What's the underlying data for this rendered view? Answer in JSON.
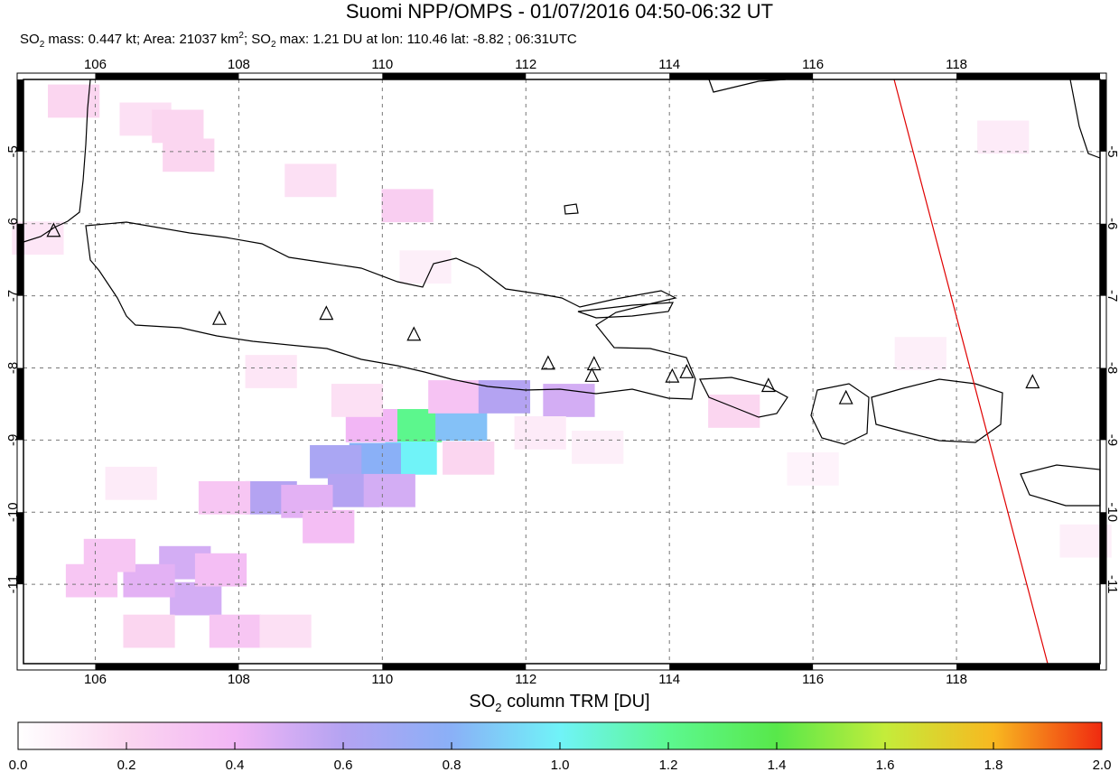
{
  "title": "Suomi NPP/OMPS - 01/07/2016 04:50-06:32 UT",
  "subtitle": {
    "mass_label": "SO",
    "mass_sub": "2",
    "mass_text": " mass: 0.447 kt; Area: 21037 km",
    "area_sup": "2",
    "max_label": "; SO",
    "max_sub": "2",
    "max_text": " max: 1.21 DU at lon: 110.46 lat: -8.82 ; 06:31UTC"
  },
  "map": {
    "lon_range": [
      105,
      120
    ],
    "lat_range": [
      -12.1,
      -4
    ],
    "lon_ticks": [
      106,
      108,
      110,
      112,
      114,
      116,
      118
    ],
    "lat_ticks": [
      -5,
      -6,
      -7,
      -8,
      -9,
      -10,
      -11
    ],
    "grid": "dashed",
    "coast_color": "#000000",
    "swath_edge_color": "#e00000",
    "volcano_icon": "triangle-outline",
    "so2_cells": [
      {
        "lon": 110.47,
        "lat": -8.8,
        "du": 1.21
      },
      {
        "lon": 111.1,
        "lat": -8.78,
        "du": 0.85
      },
      {
        "lon": 110.4,
        "lat": -9.25,
        "du": 1.0
      },
      {
        "lon": 109.9,
        "lat": -9.27,
        "du": 0.8
      },
      {
        "lon": 109.35,
        "lat": -9.3,
        "du": 0.65
      },
      {
        "lon": 109.6,
        "lat": -9.7,
        "du": 0.6
      },
      {
        "lon": 110.1,
        "lat": -9.7,
        "du": 0.5
      },
      {
        "lon": 109.85,
        "lat": -8.8,
        "du": 0.4
      },
      {
        "lon": 111.0,
        "lat": -8.4,
        "du": 0.32
      },
      {
        "lon": 111.7,
        "lat": -8.4,
        "du": 0.6
      },
      {
        "lon": 112.6,
        "lat": -8.45,
        "du": 0.5
      },
      {
        "lon": 111.2,
        "lat": -9.25,
        "du": 0.2
      },
      {
        "lon": 108.45,
        "lat": -9.8,
        "du": 0.6
      },
      {
        "lon": 108.95,
        "lat": -9.85,
        "du": 0.45
      },
      {
        "lon": 109.25,
        "lat": -10.2,
        "du": 0.35
      },
      {
        "lon": 107.8,
        "lat": -9.8,
        "du": 0.3
      },
      {
        "lon": 107.25,
        "lat": -10.7,
        "du": 0.5
      },
      {
        "lon": 107.4,
        "lat": -11.2,
        "du": 0.5
      },
      {
        "lon": 106.75,
        "lat": -10.95,
        "du": 0.45
      },
      {
        "lon": 106.2,
        "lat": -10.6,
        "du": 0.3
      },
      {
        "lon": 105.95,
        "lat": -10.95,
        "du": 0.3
      },
      {
        "lon": 107.75,
        "lat": -10.8,
        "du": 0.35
      },
      {
        "lon": 107.95,
        "lat": -11.65,
        "du": 0.3
      },
      {
        "lon": 106.75,
        "lat": -11.65,
        "du": 0.2
      },
      {
        "lon": 108.65,
        "lat": -11.65,
        "du": 0.15
      },
      {
        "lon": 110.35,
        "lat": -5.75,
        "du": 0.25
      },
      {
        "lon": 107.3,
        "lat": -5.05,
        "du": 0.2
      },
      {
        "lon": 106.7,
        "lat": -4.55,
        "du": 0.15
      },
      {
        "lon": 105.7,
        "lat": -4.3,
        "du": 0.2
      },
      {
        "lon": 107.15,
        "lat": -4.65,
        "du": 0.2
      },
      {
        "lon": 109.0,
        "lat": -5.4,
        "du": 0.15
      },
      {
        "lon": 108.45,
        "lat": -8.05,
        "du": 0.12
      },
      {
        "lon": 109.65,
        "lat": -8.45,
        "du": 0.15
      },
      {
        "lon": 114.9,
        "lat": -8.6,
        "du": 0.2
      },
      {
        "lon": 118.65,
        "lat": -4.8,
        "du": 0.1
      },
      {
        "lon": 105.2,
        "lat": -6.2,
        "du": 0.12
      },
      {
        "lon": 112.2,
        "lat": -8.9,
        "du": 0.1
      },
      {
        "lon": 113.0,
        "lat": -9.1,
        "du": 0.08
      },
      {
        "lon": 116.0,
        "lat": -9.4,
        "du": 0.06
      },
      {
        "lon": 117.5,
        "lat": -7.8,
        "du": 0.08
      },
      {
        "lon": 119.8,
        "lat": -10.4,
        "du": 0.08
      },
      {
        "lon": 110.6,
        "lat": -6.6,
        "du": 0.08
      },
      {
        "lon": 106.5,
        "lat": -9.6,
        "du": 0.1
      }
    ],
    "volcanoes": [
      {
        "lon": 105.42,
        "lat": -6.1
      },
      {
        "lon": 107.73,
        "lat": -7.32
      },
      {
        "lon": 109.22,
        "lat": -7.25
      },
      {
        "lon": 110.44,
        "lat": -7.54
      },
      {
        "lon": 112.31,
        "lat": -7.94
      },
      {
        "lon": 112.95,
        "lat": -7.95
      },
      {
        "lon": 112.92,
        "lat": -8.11
      },
      {
        "lon": 114.04,
        "lat": -8.12
      },
      {
        "lon": 114.24,
        "lat": -8.06
      },
      {
        "lon": 115.38,
        "lat": -8.25
      },
      {
        "lon": 116.46,
        "lat": -8.42
      },
      {
        "lon": 119.06,
        "lat": -8.2
      }
    ]
  },
  "colorbar": {
    "title_main": "SO",
    "title_sub": "2",
    "title_rest": " column TRM [DU]",
    "range": [
      0,
      2
    ],
    "tick_labels": [
      "0.0",
      "0.2",
      "0.4",
      "0.6",
      "0.8",
      "1.0",
      "1.2",
      "1.4",
      "1.6",
      "1.8",
      "2.0"
    ],
    "stops": [
      {
        "v": 0.0,
        "color": "#ffffff"
      },
      {
        "v": 0.2,
        "color": "#fbd6f0"
      },
      {
        "v": 0.4,
        "color": "#f2b6f5"
      },
      {
        "v": 0.6,
        "color": "#b4a3f2"
      },
      {
        "v": 0.8,
        "color": "#8ab0f7"
      },
      {
        "v": 1.0,
        "color": "#70f3f8"
      },
      {
        "v": 1.2,
        "color": "#5cf890"
      },
      {
        "v": 1.4,
        "color": "#58e84a"
      },
      {
        "v": 1.6,
        "color": "#c4ec3a"
      },
      {
        "v": 1.8,
        "color": "#f8b820"
      },
      {
        "v": 2.0,
        "color": "#f02a10"
      }
    ]
  }
}
